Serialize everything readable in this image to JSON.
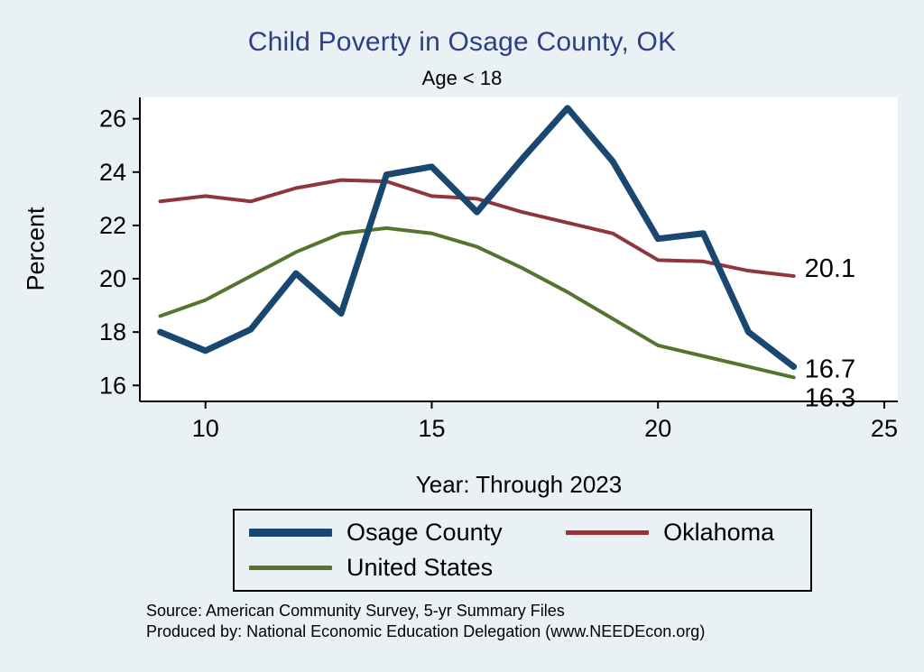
{
  "chart_data": {
    "type": "line",
    "title": "Child Poverty in Osage County, OK",
    "subtitle": "Age < 18",
    "xlabel": "Year: Through 2023",
    "ylabel": "Percent",
    "x": [
      9,
      10,
      11,
      12,
      13,
      14,
      15,
      16,
      17,
      18,
      19,
      20,
      21,
      22,
      23
    ],
    "series": [
      {
        "name": "Osage County",
        "color": "#1a476f",
        "width": 7,
        "values": [
          18.0,
          17.3,
          18.1,
          20.2,
          18.7,
          23.9,
          24.2,
          22.5,
          24.5,
          26.4,
          24.4,
          21.5,
          21.7,
          18.0,
          16.7
        ],
        "end_label": "16.7",
        "end_label_offset": [
          12,
          3
        ]
      },
      {
        "name": "Oklahoma",
        "color": "#90353b",
        "width": 4,
        "values": [
          22.9,
          23.1,
          22.9,
          23.4,
          23.7,
          23.65,
          23.1,
          23.0,
          22.5,
          22.1,
          21.7,
          20.7,
          20.65,
          20.3,
          20.1
        ],
        "end_label": "20.1",
        "end_label_offset": [
          12,
          -8
        ]
      },
      {
        "name": "United States",
        "color": "#55752f",
        "width": 4,
        "values": [
          18.6,
          19.2,
          20.1,
          21.0,
          21.7,
          21.9,
          21.7,
          21.2,
          20.4,
          19.5,
          18.5,
          17.5,
          17.1,
          16.7,
          16.3
        ],
        "end_label": "16.3",
        "end_label_offset": [
          12,
          23
        ]
      }
    ],
    "xlim": [
      8.55,
      25.3
    ],
    "ylim": [
      15.4,
      26.8
    ],
    "xticks": [
      10,
      15,
      20,
      25
    ],
    "yticks": [
      16,
      18,
      20,
      22,
      24,
      26
    ],
    "grid": false,
    "legend_position": "bottom"
  },
  "footer": {
    "source": "Source: American Community Survey, 5-yr Summary Files",
    "produced_by": "Produced by: National Economic Education Delegation (www.NEEDEcon.org)"
  },
  "colors": {
    "background": "#eaf1f5",
    "plot_background": "#ffffff",
    "title": "#2b3f87",
    "axis": "#000000"
  }
}
